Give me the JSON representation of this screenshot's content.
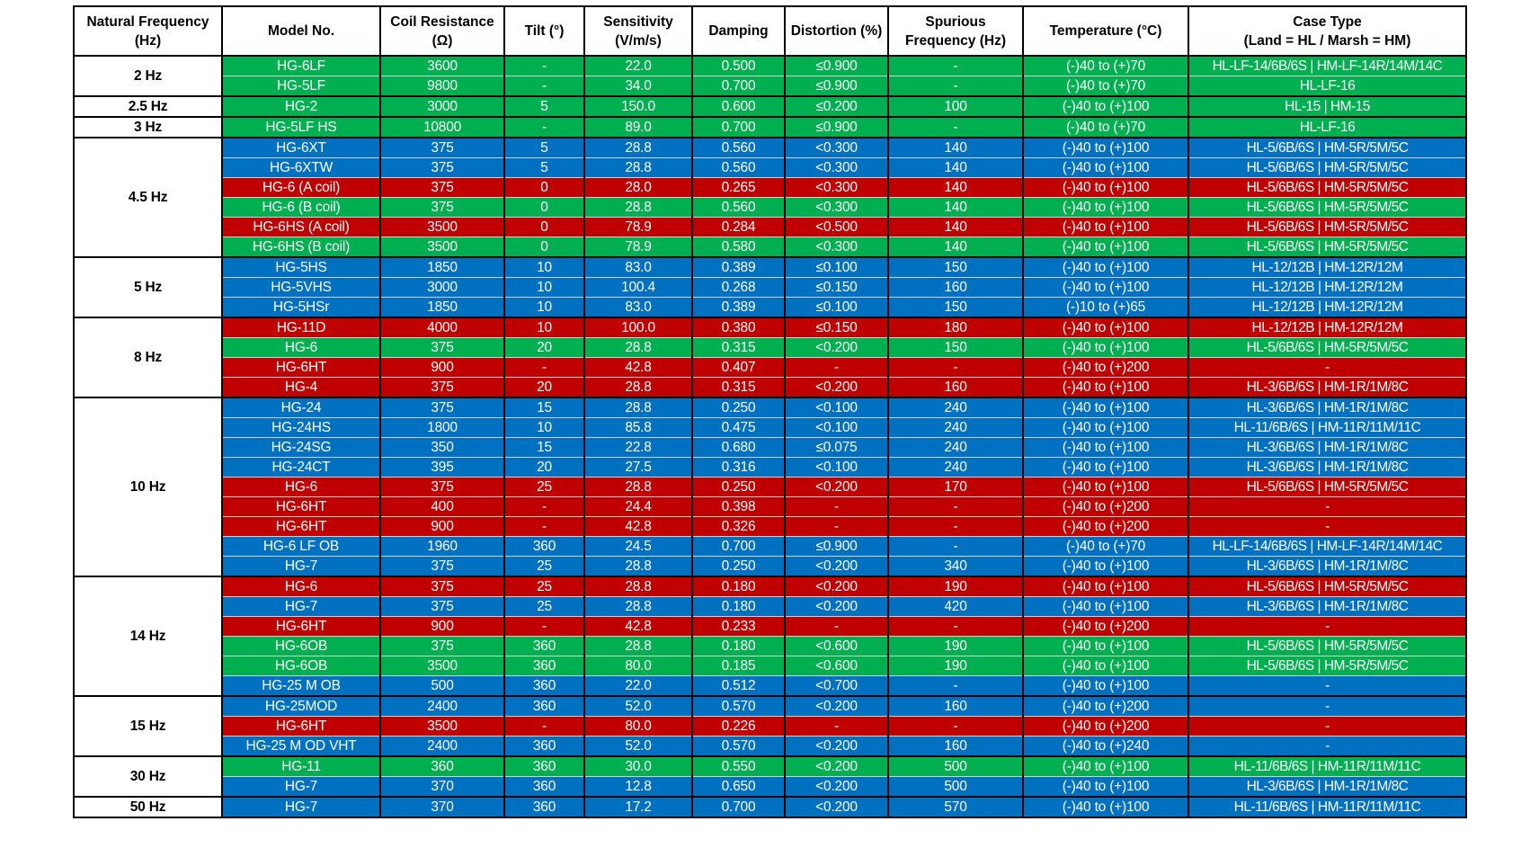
{
  "colors": {
    "green": "#00b050",
    "blue": "#0070c0",
    "red": "#c00000"
  },
  "table": {
    "headers": [
      "Natural Frequency\n(Hz)",
      "Model No.",
      "Coil Resistance\n(Ω)",
      "Tilt (°)",
      "Sensitivity\n(V/m/s)",
      "Damping",
      "Distortion (%)",
      "Spurious\nFrequency (Hz)",
      "Temperature (°C)",
      "Case Type\n(Land = HL / Marsh = HM)"
    ],
    "groups": [
      {
        "freq": "2 Hz",
        "rows": [
          {
            "color": "green",
            "cells": [
              "HG-6LF",
              "3600",
              "-",
              "22.0",
              "0.500",
              "≤0.900",
              "-",
              "(-)40 to (+)70",
              "HL-LF-14/6B/6S | HM-LF-14R/14M/14C"
            ]
          },
          {
            "color": "green",
            "cells": [
              "HG-5LF",
              "9800",
              "-",
              "34.0",
              "0.700",
              "≤0.900",
              "-",
              "(-)40 to (+)70",
              "HL-LF-16"
            ]
          }
        ]
      },
      {
        "freq": "2.5 Hz",
        "rows": [
          {
            "color": "green",
            "cells": [
              "HG-2",
              "3000",
              "5",
              "150.0",
              "0.600",
              "≤0.200",
              "100",
              "(-)40 to (+)100",
              "HL-15 | HM-15"
            ]
          }
        ]
      },
      {
        "freq": "3 Hz",
        "rows": [
          {
            "color": "green",
            "cells": [
              "HG-5LF HS",
              "10800",
              "-",
              "89.0",
              "0.700",
              "≤0.900",
              "-",
              "(-)40 to (+)70",
              "HL-LF-16"
            ]
          }
        ]
      },
      {
        "freq": "4.5 Hz",
        "rows": [
          {
            "color": "blue",
            "cells": [
              "HG-6XT",
              "375",
              "5",
              "28.8",
              "0.560",
              "<0.300",
              "140",
              "(-)40 to (+)100",
              "HL-5/6B/6S | HM-5R/5M/5C"
            ]
          },
          {
            "color": "blue",
            "cells": [
              "HG-6XTW",
              "375",
              "5",
              "28.8",
              "0.560",
              "<0.300",
              "140",
              "(-)40 to (+)100",
              "HL-5/6B/6S | HM-5R/5M/5C"
            ]
          },
          {
            "color": "red",
            "cells": [
              "HG-6 (A coil)",
              "375",
              "0",
              "28.0",
              "0.265",
              "<0.300",
              "140",
              "(-)40 to (+)100",
              "HL-5/6B/6S | HM-5R/5M/5C"
            ]
          },
          {
            "color": "green",
            "cells": [
              "HG-6 (B coil)",
              "375",
              "0",
              "28.8",
              "0.560",
              "<0.300",
              "140",
              "(-)40 to (+)100",
              "HL-5/6B/6S | HM-5R/5M/5C"
            ]
          },
          {
            "color": "red",
            "cells": [
              "HG-6HS (A coil)",
              "3500",
              "0",
              "78.9",
              "0.284",
              "<0.500",
              "140",
              "(-)40 to (+)100",
              "HL-5/6B/6S | HM-5R/5M/5C"
            ]
          },
          {
            "color": "green",
            "cells": [
              "HG-6HS (B coil)",
              "3500",
              "0",
              "78.9",
              "0.580",
              "<0.300",
              "140",
              "(-)40 to (+)100",
              "HL-5/6B/6S | HM-5R/5M/5C"
            ]
          }
        ]
      },
      {
        "freq": "5 Hz",
        "rows": [
          {
            "color": "blue",
            "cells": [
              "HG-5HS",
              "1850",
              "10",
              "83.0",
              "0.389",
              "≤0.100",
              "150",
              "(-)40 to (+)100",
              "HL-12/12B | HM-12R/12M"
            ]
          },
          {
            "color": "blue",
            "cells": [
              "HG-5VHS",
              "3000",
              "10",
              "100.4",
              "0.268",
              "≤0.150",
              "160",
              "(-)40 to (+)100",
              "HL-12/12B | HM-12R/12M"
            ]
          },
          {
            "color": "blue",
            "cells": [
              "HG-5HSr",
              "1850",
              "10",
              "83.0",
              "0.389",
              "≤0.100",
              "150",
              "(-)10 to (+)65",
              "HL-12/12B | HM-12R/12M"
            ]
          }
        ]
      },
      {
        "freq": "8 Hz",
        "rows": [
          {
            "color": "red",
            "cells": [
              "HG-11D",
              "4000",
              "10",
              "100.0",
              "0.380",
              "≤0.150",
              "180",
              "(-)40 to (+)100",
              "HL-12/12B | HM-12R/12M"
            ]
          },
          {
            "color": "green",
            "cells": [
              "HG-6",
              "375",
              "20",
              "28.8",
              "0.315",
              "<0.200",
              "150",
              "(-)40 to (+)100",
              "HL-5/6B/6S | HM-5R/5M/5C"
            ]
          },
          {
            "color": "red",
            "cells": [
              "HG-6HT",
              "900",
              "-",
              "42.8",
              "0.407",
              "-",
              "-",
              "(-)40 to (+)200",
              "-"
            ]
          },
          {
            "color": "red",
            "cells": [
              "HG-4",
              "375",
              "20",
              "28.8",
              "0.315",
              "<0.200",
              "160",
              "(-)40 to (+)100",
              "HL-3/6B/6S | HM-1R/1M/8C"
            ]
          }
        ]
      },
      {
        "freq": "10 Hz",
        "rows": [
          {
            "color": "blue",
            "cells": [
              "HG-24",
              "375",
              "15",
              "28.8",
              "0.250",
              "<0.100",
              "240",
              "(-)40 to (+)100",
              "HL-3/6B/6S | HM-1R/1M/8C"
            ]
          },
          {
            "color": "blue",
            "cells": [
              "HG-24HS",
              "1800",
              "10",
              "85.8",
              "0.475",
              "<0.100",
              "240",
              "(-)40 to (+)100",
              "HL-11/6B/6S | HM-11R/11M/11C"
            ]
          },
          {
            "color": "blue",
            "cells": [
              "HG-24SG",
              "350",
              "15",
              "22.8",
              "0.680",
              "≤0.075",
              "240",
              "(-)40 to (+)100",
              "HL-3/6B/6S | HM-1R/1M/8C"
            ]
          },
          {
            "color": "blue",
            "cells": [
              "HG-24CT",
              "395",
              "20",
              "27.5",
              "0.316",
              "<0.100",
              "240",
              "(-)40 to (+)100",
              "HL-3/6B/6S | HM-1R/1M/8C"
            ]
          },
          {
            "color": "red",
            "cells": [
              "HG-6",
              "375",
              "25",
              "28.8",
              "0.250",
              "<0.200",
              "170",
              "(-)40 to (+)100",
              "HL-5/6B/6S | HM-5R/5M/5C"
            ]
          },
          {
            "color": "red",
            "cells": [
              "HG-6HT",
              "400",
              "-",
              "24.4",
              "0.398",
              "-",
              "-",
              "(-)40 to (+)200",
              "-"
            ]
          },
          {
            "color": "red",
            "cells": [
              "HG-6HT",
              "900",
              "-",
              "42.8",
              "0.326",
              "-",
              "-",
              "(-)40 to (+)200",
              "-"
            ]
          },
          {
            "color": "blue",
            "cells": [
              "HG-6 LF OB",
              "1960",
              "360",
              "24.5",
              "0.700",
              "≤0.900",
              "-",
              "(-)40 to (+)70",
              "HL-LF-14/6B/6S | HM-LF-14R/14M/14C"
            ]
          },
          {
            "color": "blue",
            "cells": [
              "HG-7",
              "375",
              "25",
              "28.8",
              "0.250",
              "<0.200",
              "340",
              "(-)40 to (+)100",
              "HL-3/6B/6S | HM-1R/1M/8C"
            ]
          }
        ]
      },
      {
        "freq": "14 Hz",
        "rows": [
          {
            "color": "red",
            "cells": [
              "HG-6",
              "375",
              "25",
              "28.8",
              "0.180",
              "<0.200",
              "190",
              "(-)40 to (+)100",
              "HL-5/6B/6S | HM-5R/5M/5C"
            ]
          },
          {
            "color": "blue",
            "cells": [
              "HG-7",
              "375",
              "25",
              "28.8",
              "0.180",
              "<0.200",
              "420",
              "(-)40 to (+)100",
              "HL-3/6B/6S | HM-1R/1M/8C"
            ]
          },
          {
            "color": "red",
            "cells": [
              "HG-6HT",
              "900",
              "-",
              "42.8",
              "0.233",
              "-",
              "-",
              "(-)40 to (+)200",
              "-"
            ]
          },
          {
            "color": "green",
            "cells": [
              "HG-6OB",
              "375",
              "360",
              "28.8",
              "0.180",
              "<0.600",
              "190",
              "(-)40 to (+)100",
              "HL-5/6B/6S | HM-5R/5M/5C"
            ]
          },
          {
            "color": "green",
            "cells": [
              "HG-6OB",
              "3500",
              "360",
              "80.0",
              "0.185",
              "<0.600",
              "190",
              "(-)40 to (+)100",
              "HL-5/6B/6S | HM-5R/5M/5C"
            ]
          },
          {
            "color": "blue",
            "cells": [
              "HG-25 M OB",
              "500",
              "360",
              "22.0",
              "0.512",
              "<0.700",
              "-",
              "(-)40 to (+)100",
              "-"
            ]
          }
        ]
      },
      {
        "freq": "15 Hz",
        "rows": [
          {
            "color": "blue",
            "cells": [
              "HG-25MOD",
              "2400",
              "360",
              "52.0",
              "0.570",
              "<0.200",
              "160",
              "(-)40 to (+)200",
              "-"
            ]
          },
          {
            "color": "red",
            "cells": [
              "HG-6HT",
              "3500",
              "-",
              "80.0",
              "0.226",
              "-",
              "-",
              "(-)40 to (+)200",
              "-"
            ]
          },
          {
            "color": "blue",
            "cells": [
              "HG-25 M OD VHT",
              "2400",
              "360",
              "52.0",
              "0.570",
              "<0.200",
              "160",
              "(-)40 to (+)240",
              "-"
            ]
          }
        ]
      },
      {
        "freq": "30 Hz",
        "rows": [
          {
            "color": "green",
            "cells": [
              "HG-11",
              "360",
              "360",
              "30.0",
              "0.550",
              "<0.200",
              "500",
              "(-)40 to (+)100",
              "HL-11/6B/6S | HM-11R/11M/11C"
            ]
          },
          {
            "color": "blue",
            "cells": [
              "HG-7",
              "370",
              "360",
              "12.8",
              "0.650",
              "<0.200",
              "500",
              "(-)40 to (+)100",
              "HL-3/6B/6S | HM-1R/1M/8C"
            ]
          }
        ]
      },
      {
        "freq": "50 Hz",
        "rows": [
          {
            "color": "blue",
            "cells": [
              "HG-7",
              "370",
              "360",
              "17.2",
              "0.700",
              "<0.200",
              "570",
              "(-)40 to (+)100",
              "HL-11/6B/6S | HM-11R/11M/11C"
            ]
          }
        ]
      }
    ]
  }
}
